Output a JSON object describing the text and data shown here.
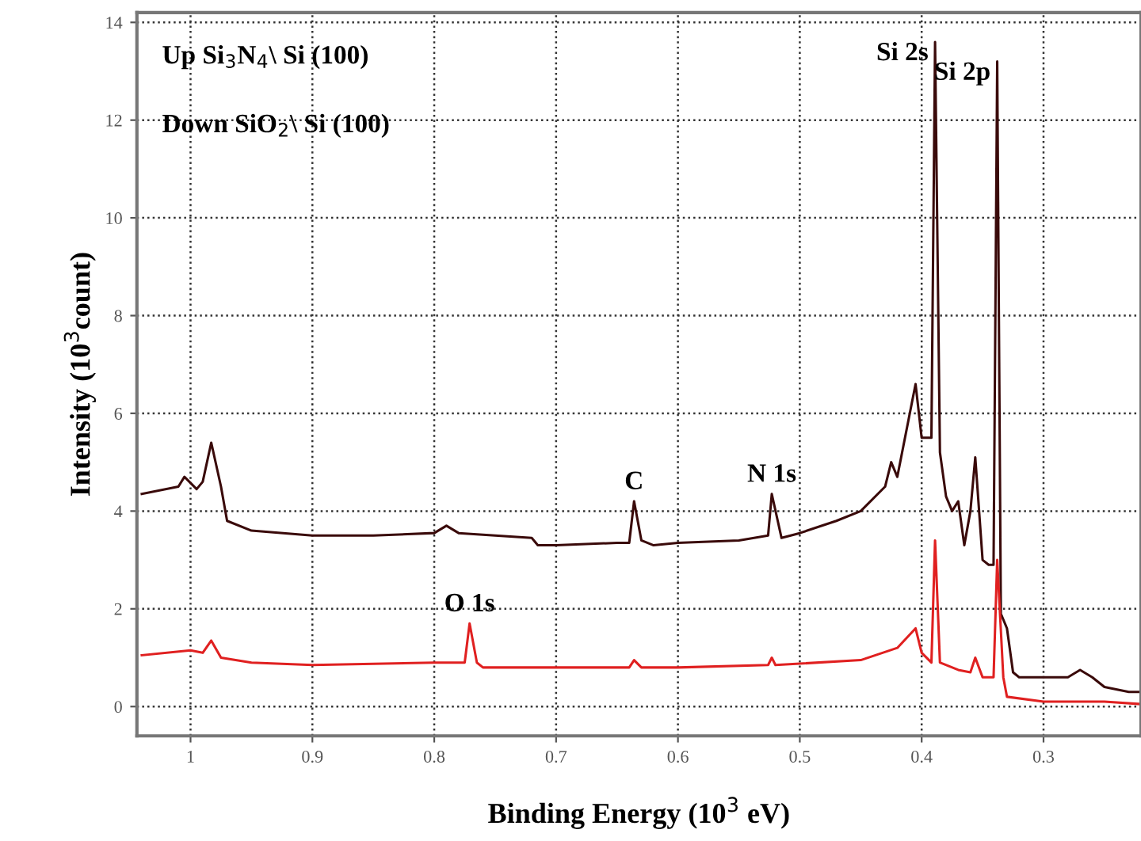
{
  "chart_data": {
    "type": "line",
    "xlabel": "Binding Energy (10$^{3}$ eV)",
    "ylabel": "Intensity (10$^{3}$count)",
    "xlim": [
      1.044,
      0.22
    ],
    "xticks": [
      1,
      0.9,
      0.8,
      0.7,
      0.6,
      0.5,
      0.4,
      0.3
    ],
    "ylim": [
      -0.6,
      14.2
    ],
    "yticks": [
      0,
      2,
      4,
      6,
      8,
      10,
      12,
      14
    ],
    "grid": true,
    "series": [
      {
        "color": "#3a0a0a",
        "x": [
          1.04,
          1.01,
          1.005,
          0.995,
          0.99,
          0.983,
          0.975,
          0.97,
          0.95,
          0.9,
          0.85,
          0.8,
          0.79,
          0.78,
          0.75,
          0.72,
          0.715,
          0.7,
          0.65,
          0.64,
          0.636,
          0.63,
          0.62,
          0.6,
          0.55,
          0.526,
          0.523,
          0.515,
          0.5,
          0.47,
          0.45,
          0.43,
          0.425,
          0.42,
          0.405,
          0.4,
          0.392,
          0.389,
          0.385,
          0.38,
          0.375,
          0.37,
          0.365,
          0.36,
          0.356,
          0.35,
          0.345,
          0.341,
          0.338,
          0.335,
          0.33,
          0.325,
          0.32,
          0.3,
          0.28,
          0.27,
          0.26,
          0.25,
          0.23,
          0.22
        ],
        "values": [
          4.35,
          4.5,
          4.7,
          4.45,
          4.6,
          5.4,
          4.5,
          3.8,
          3.6,
          3.5,
          3.5,
          3.55,
          3.7,
          3.55,
          3.5,
          3.45,
          3.3,
          3.3,
          3.35,
          3.35,
          4.2,
          3.4,
          3.3,
          3.35,
          3.4,
          3.5,
          4.35,
          3.45,
          3.55,
          3.8,
          4.0,
          4.5,
          5.0,
          4.7,
          6.6,
          5.5,
          5.5,
          13.6,
          5.2,
          4.3,
          4.0,
          4.2,
          3.3,
          4.0,
          5.1,
          3.0,
          2.9,
          2.9,
          13.2,
          1.9,
          1.6,
          0.7,
          0.6,
          0.6,
          0.6,
          0.75,
          0.6,
          0.4,
          0.3,
          0.3
        ]
      },
      {
        "color": "#e02020",
        "x": [
          1.04,
          1.0,
          0.99,
          0.983,
          0.975,
          0.95,
          0.9,
          0.8,
          0.775,
          0.771,
          0.765,
          0.76,
          0.7,
          0.64,
          0.636,
          0.63,
          0.6,
          0.526,
          0.523,
          0.52,
          0.45,
          0.42,
          0.405,
          0.4,
          0.392,
          0.389,
          0.385,
          0.37,
          0.36,
          0.356,
          0.35,
          0.341,
          0.338,
          0.333,
          0.33,
          0.3,
          0.25,
          0.22
        ],
        "values": [
          1.05,
          1.15,
          1.1,
          1.35,
          1.0,
          0.9,
          0.85,
          0.9,
          0.9,
          1.7,
          0.9,
          0.8,
          0.8,
          0.8,
          0.95,
          0.8,
          0.8,
          0.85,
          1.0,
          0.85,
          0.95,
          1.2,
          1.6,
          1.1,
          0.9,
          3.4,
          0.9,
          0.75,
          0.7,
          1.0,
          0.6,
          0.6,
          3.0,
          0.6,
          0.2,
          0.1,
          0.1,
          0.05
        ]
      }
    ],
    "annotations": [
      "Up Si$_{3}$N$_{4}$\\ Si (100)",
      "Down SiO$_{2}$\\ Si (100)",
      {
        "text": "Si 2s",
        "x": 0.389,
        "y": 13.6
      },
      {
        "text": "Si 2p",
        "x": 0.338,
        "y": 13.2
      },
      {
        "text": "C",
        "x": 0.636,
        "y": 4.2
      },
      {
        "text": "N 1s",
        "x": 0.523,
        "y": 4.35
      },
      {
        "text": "O 1s",
        "x": 0.771,
        "y": 1.7
      }
    ]
  }
}
